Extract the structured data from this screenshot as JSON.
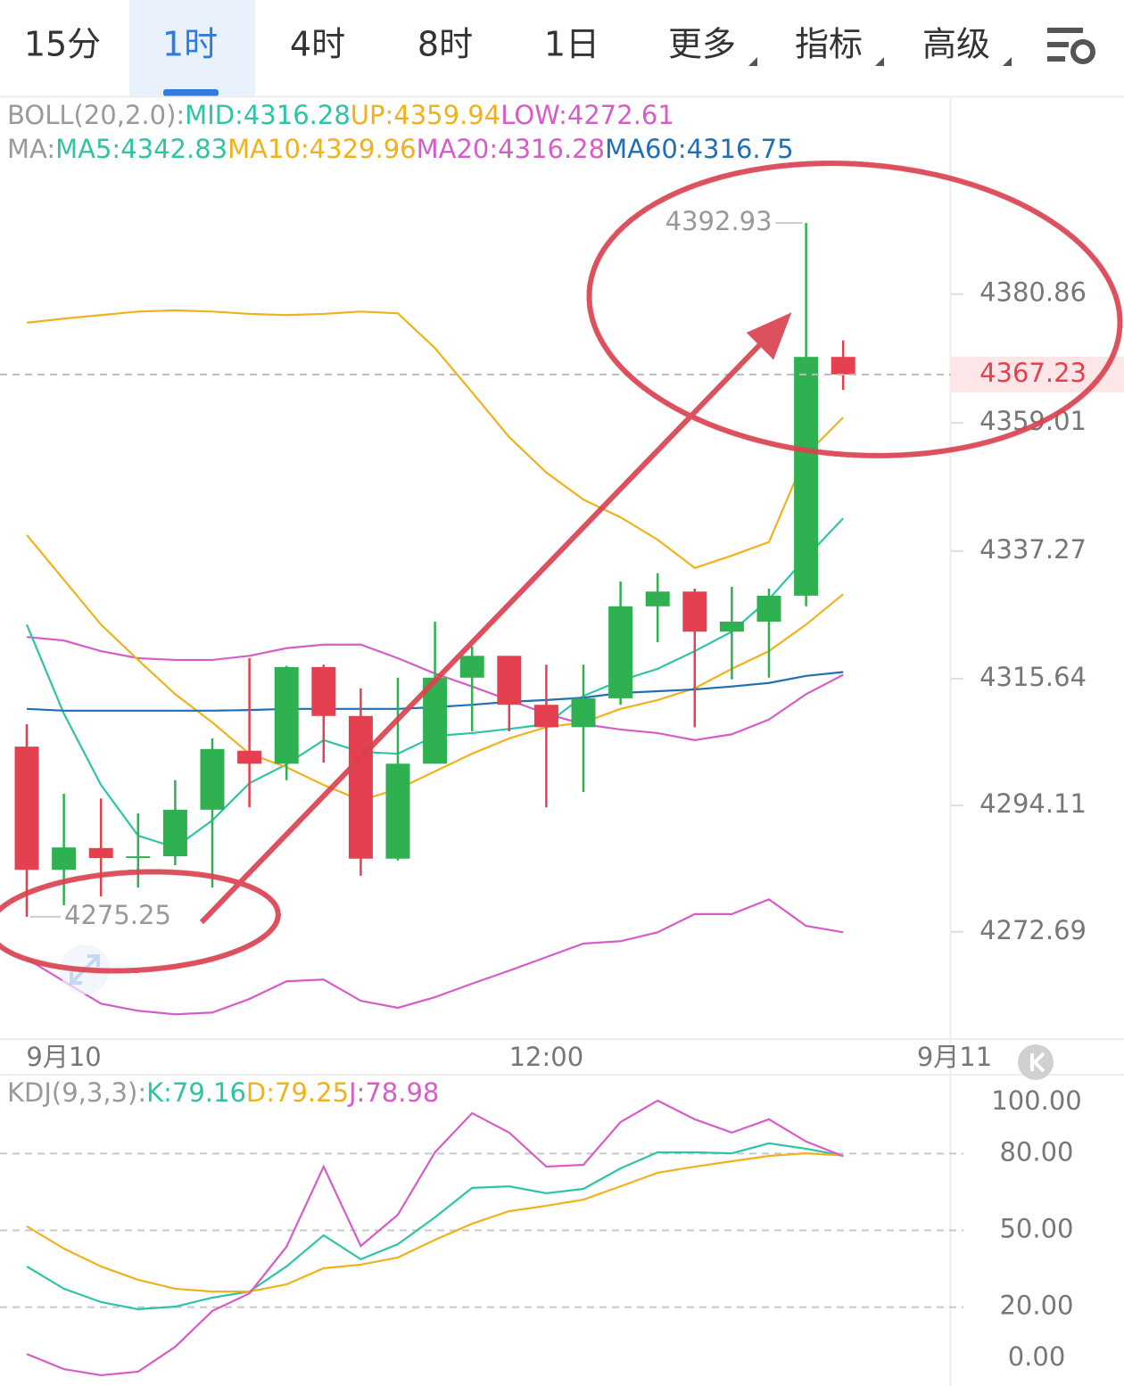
{
  "tabs": [
    {
      "label": "15分"
    },
    {
      "label": "1时"
    },
    {
      "label": "4时"
    },
    {
      "label": "8时"
    },
    {
      "label": "1日"
    },
    {
      "label": "更多",
      "dropdown": true
    },
    {
      "label": "指标",
      "dropdown": true
    },
    {
      "label": "高级",
      "dropdown": true
    }
  ],
  "active_tab": 1,
  "chart_data": [
    {
      "type": "candlestick",
      "legend": [
        [
          {
            "text": "BOLL(20,2.0):",
            "color": "#9a9a9a"
          },
          {
            "text": "MID:4316.28",
            "color": "#2ec4a5"
          },
          {
            "text": "UP:4359.94",
            "color": "#f0b21c"
          },
          {
            "text": "LOW:4272.61",
            "color": "#d85cc8"
          }
        ],
        [
          {
            "text": "MA:",
            "color": "#9a9a9a"
          },
          {
            "text": "MA5:4342.83",
            "color": "#2ec4a5"
          },
          {
            "text": "MA10:4329.96",
            "color": "#f0b21c"
          },
          {
            "text": "MA20:4316.28",
            "color": "#d85cc8"
          },
          {
            "text": "MA60:4316.75",
            "color": "#1f6fb5"
          }
        ]
      ],
      "categories": [
        null,
        "9月10",
        null,
        null,
        null,
        null,
        null,
        null,
        null,
        null,
        null,
        null,
        null,
        null,
        "12:00",
        null,
        null,
        null,
        null,
        null,
        null,
        null,
        null,
        null,
        null,
        "9月11"
      ],
      "open": [
        4304.1,
        4283.2,
        4286.9,
        4285.2,
        4285.5,
        4293.4,
        4303.4,
        4301.2,
        4317.6,
        4309.3,
        4285.1,
        4301.2,
        4315.8,
        4319.5,
        4311.2,
        4307.4,
        4312.3,
        4327.9,
        4330.4,
        4323.6,
        4325.3,
        4329.7,
        4370.2,
        null,
        null,
        null
      ],
      "high": [
        4307.9,
        4296.1,
        4295.3,
        4292.8,
        4298.4,
        4305.5,
        4319.1,
        4317.8,
        4318.0,
        4314.0,
        4315.8,
        4325.3,
        4321.1,
        4319.5,
        4318.0,
        4318.0,
        4332.1,
        4333.5,
        4330.9,
        4331.2,
        4330.9,
        4392.93,
        4373.0,
        null,
        null,
        null
      ],
      "low": [
        4275.25,
        4277.2,
        4278.7,
        4280.2,
        4284.0,
        4280.2,
        4293.8,
        4298.4,
        4301.4,
        4282.2,
        4284.8,
        4301.2,
        4306.7,
        4306.7,
        4293.8,
        4296.4,
        4311.2,
        4321.8,
        4307.4,
        4315.5,
        4315.8,
        4327.9,
        4364.6,
        null,
        null,
        null
      ],
      "close": [
        4283.2,
        4287.0,
        4285.2,
        4285.5,
        4293.4,
        4303.7,
        4301.2,
        4317.6,
        4309.3,
        4285.1,
        4301.2,
        4315.8,
        4319.5,
        4311.2,
        4307.4,
        4312.3,
        4327.9,
        4330.4,
        4323.6,
        4325.3,
        4329.7,
        4370.2,
        4367.23,
        null,
        null,
        null
      ],
      "up_color": "#2fb152",
      "down_color": "#e5404f",
      "lines": [
        {
          "color": "#f0b21c",
          "values": [
            4376.0,
            4376.7,
            4377.3,
            4377.9,
            4378.1,
            4377.9,
            4377.5,
            4377.3,
            4377.5,
            4377.9,
            4377.6,
            4371.7,
            4364.2,
            4356.6,
            4350.6,
            4346.0,
            4343.0,
            4339.2,
            4334.4,
            4336.5,
            4338.8,
            4353.6,
            4359.94,
            null,
            null,
            null
          ]
        },
        {
          "color": "#d85cc8",
          "values": [
            4268.1,
            4264.3,
            4260.5,
            4259.3,
            4258.7,
            4259.0,
            4261.3,
            4264.3,
            4264.6,
            4261.0,
            4259.8,
            4261.6,
            4263.9,
            4266.1,
            4268.4,
            4270.7,
            4271.1,
            4272.6,
            4275.7,
            4275.7,
            4278.2,
            4273.7,
            4272.61,
            null,
            null,
            null
          ]
        },
        {
          "color": "#d85cc8",
          "values": [
            4322.7,
            4322.1,
            4320.3,
            4319.1,
            4318.8,
            4318.8,
            4319.5,
            4320.8,
            4321.4,
            4321.4,
            4319.1,
            4316.5,
            4314.3,
            4312.0,
            4309.7,
            4307.9,
            4307.0,
            4306.4,
            4305.2,
            4306.2,
            4308.7,
            4313.0,
            4316.28,
            null,
            null,
            null
          ]
        },
        {
          "color": "#2ec4a5",
          "values": [
            4324.8,
            4309.7,
            4297.6,
            4289.0,
            4287.0,
            4291.6,
            4297.9,
            4301.1,
            4305.2,
            4303.2,
            4302.9,
            4305.9,
            4306.4,
            4307.1,
            4307.9,
            4312.7,
            4315.3,
            4317.3,
            4320.3,
            4323.6,
            4329.1,
            4336.2,
            4342.83,
            null,
            null,
            null
          ]
        },
        {
          "color": "#f0b21c",
          "values": [
            4340.0,
            4332.4,
            4324.8,
            4318.8,
            4313.0,
            4308.2,
            4302.9,
            4300.6,
            4297.6,
            4295.0,
            4296.9,
            4299.9,
            4302.9,
            4305.5,
            4307.4,
            4308.2,
            4310.5,
            4312.0,
            4314.0,
            4317.3,
            4320.3,
            4324.8,
            4329.96,
            null,
            null,
            null
          ]
        },
        {
          "color": "#1f6fb5",
          "values": [
            4310.5,
            4310.2,
            4310.2,
            4310.2,
            4310.2,
            4310.2,
            4310.3,
            4310.5,
            4310.5,
            4310.5,
            4310.5,
            4310.8,
            4311.2,
            4311.7,
            4312.0,
            4312.4,
            4313.2,
            4313.5,
            4313.8,
            4314.3,
            4314.9,
            4316.1,
            4316.75,
            null,
            null,
            null
          ]
        }
      ],
      "ylim": [
        4254.5,
        4414.1
      ],
      "yticks": [
        4380.86,
        4359.01,
        4337.27,
        4315.64,
        4294.11,
        4272.69
      ]
    },
    {
      "type": "line",
      "legend": [
        [
          {
            "text": "KDJ(9,3,3):",
            "color": "#9a9a9a"
          },
          {
            "text": "K:79.16",
            "color": "#2ec4a5"
          },
          {
            "text": "D:79.25",
            "color": "#f0b21c"
          },
          {
            "text": "J:78.98",
            "color": "#d85cc8"
          }
        ]
      ],
      "series": [
        {
          "color": "#2ec4a5",
          "values": [
            35.9,
            27.2,
            22.0,
            19.2,
            20.2,
            23.7,
            26.1,
            35.9,
            48.1,
            38.7,
            44.6,
            55.1,
            66.6,
            67.2,
            64.5,
            66.2,
            74.2,
            80.5,
            80.5,
            80.1,
            84.0,
            81.9,
            79.16,
            null,
            null,
            null
          ]
        },
        {
          "color": "#f0b21c",
          "values": [
            51.6,
            42.9,
            35.9,
            30.7,
            27.2,
            26.1,
            26.1,
            28.9,
            35.2,
            36.6,
            39.4,
            46.3,
            52.6,
            57.5,
            59.6,
            62.0,
            67.2,
            72.5,
            74.9,
            77.0,
            79.1,
            80.1,
            79.25,
            null,
            null,
            null
          ]
        },
        {
          "color": "#d85cc8",
          "values": [
            1.7,
            -4.2,
            -6.6,
            -5.2,
            4.5,
            18.5,
            25.4,
            43.6,
            74.9,
            43.9,
            56.1,
            80.5,
            95.8,
            88.2,
            74.9,
            75.6,
            92.3,
            100.7,
            93.4,
            88.2,
            93.4,
            84.7,
            78.98,
            null,
            null,
            null
          ]
        }
      ],
      "ylim": [
        -10.8,
        110.8
      ],
      "yticks": [
        {
          "value": 100,
          "label": "100.00"
        },
        {
          "value": 80,
          "label": "80.00"
        },
        {
          "value": 50,
          "label": "50.00"
        },
        {
          "value": 20,
          "label": "20.00"
        },
        {
          "value": 0,
          "label": "0.00"
        }
      ]
    }
  ]
}
